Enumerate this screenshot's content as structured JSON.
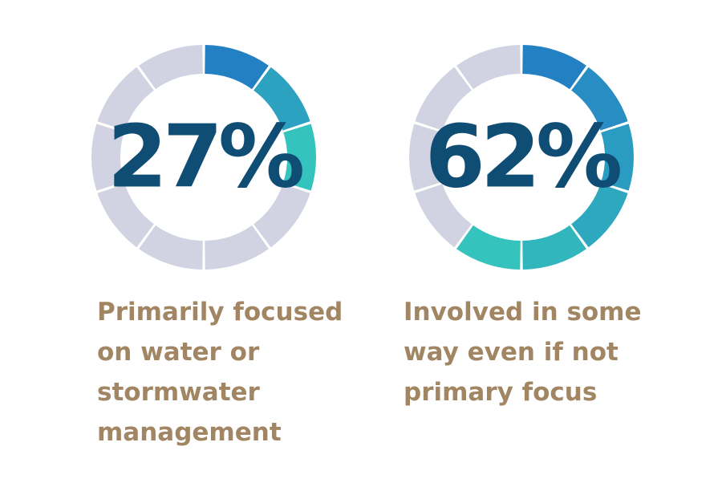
{
  "chart_data": [
    {
      "type": "donut",
      "value_percent": 27,
      "segments_total": 10,
      "label": "27%",
      "caption": "Primarily focused\non water or\nstormwater\nmanagement"
    },
    {
      "type": "donut",
      "value_percent": 62,
      "segments_total": 10,
      "label": "62%",
      "caption": "Involved in some\nway even if not\nprimary focus"
    }
  ],
  "colors": {
    "inactive_segment": "#d1d3e2",
    "gradient_start": "#2380c3",
    "gradient_end": "#35c3bd",
    "percent_text": "#0f4d74",
    "caption_text": "#a28664"
  }
}
